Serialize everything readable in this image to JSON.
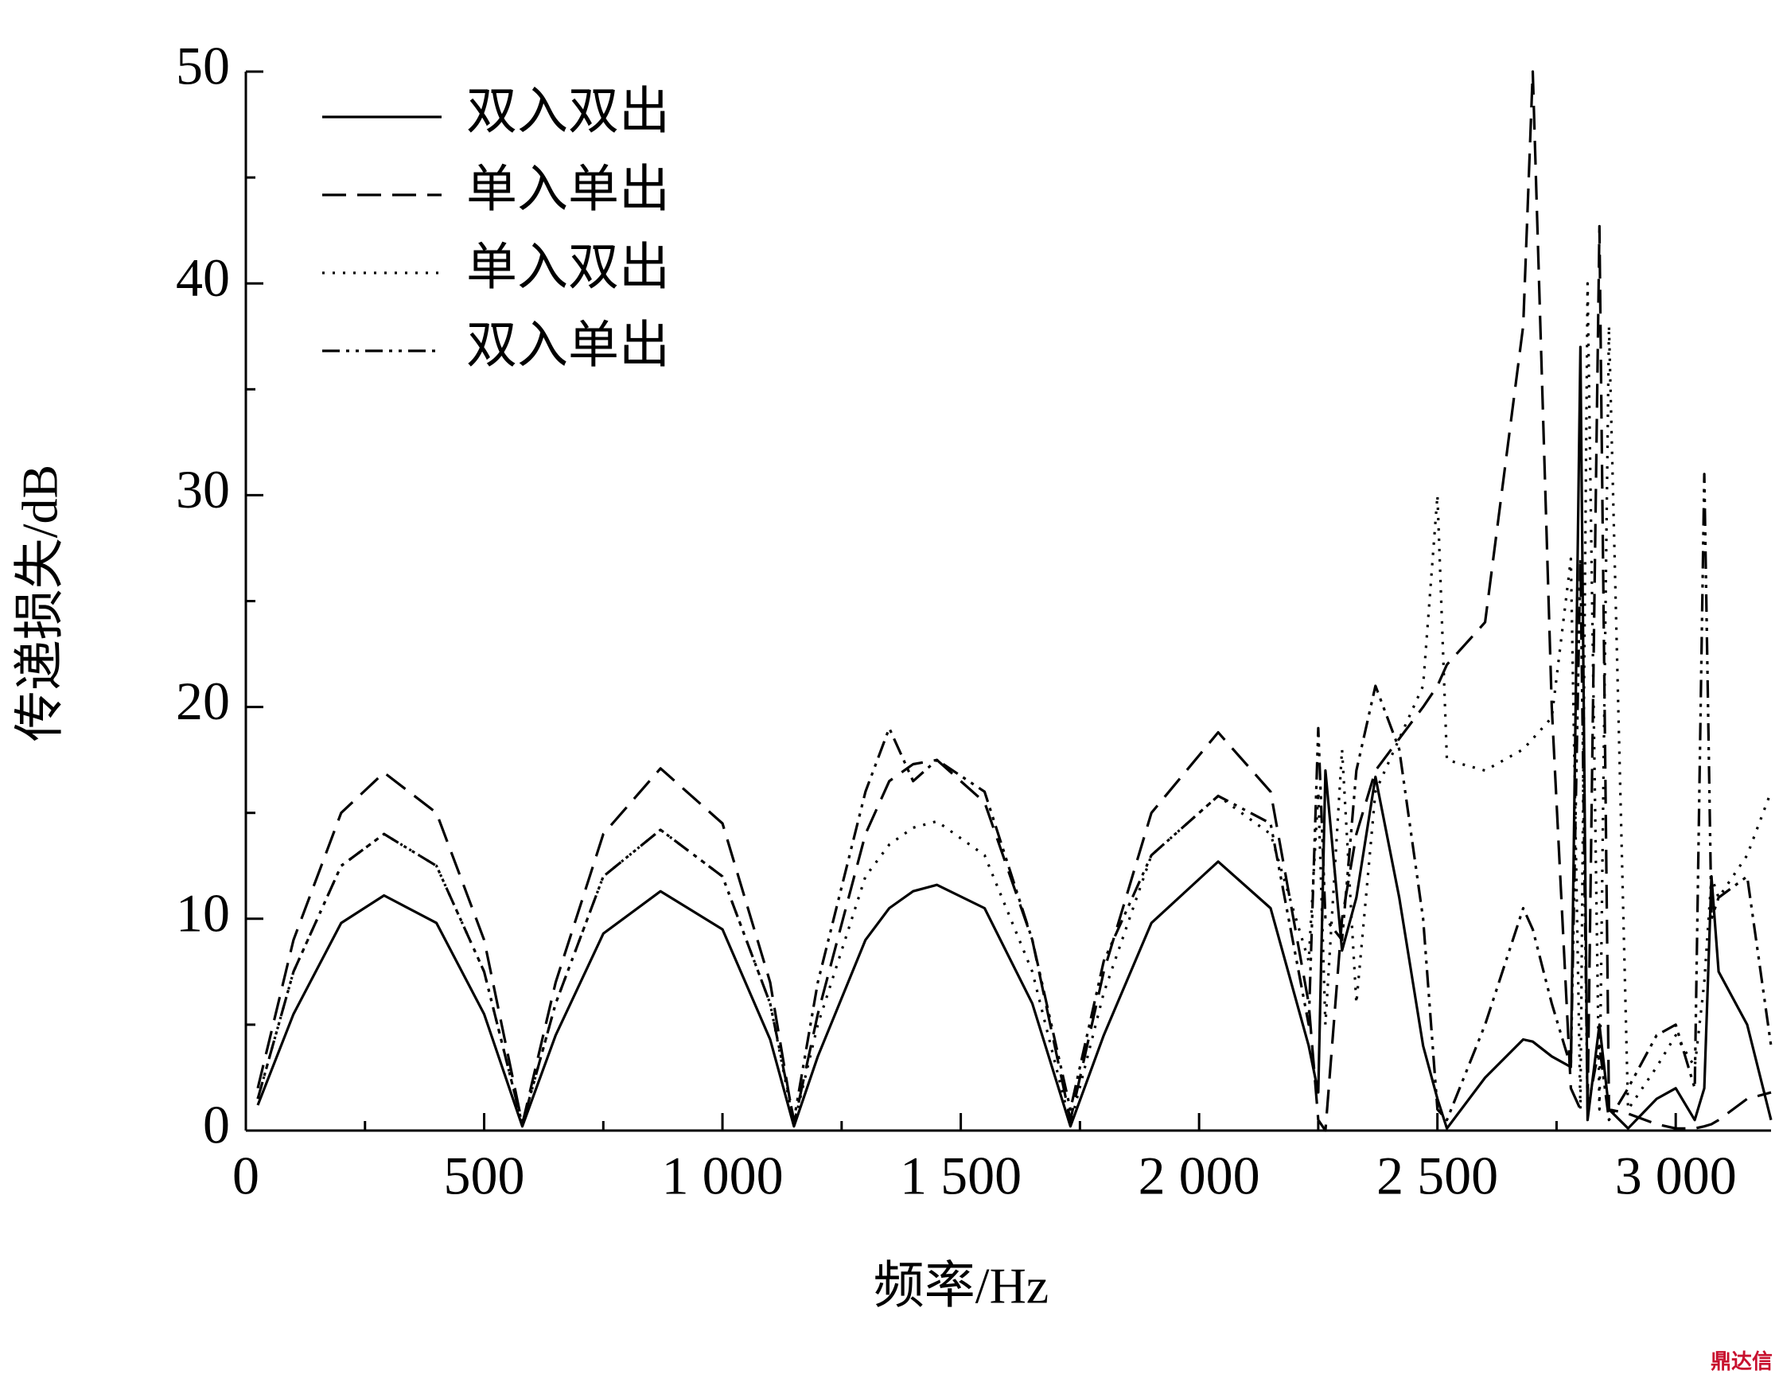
{
  "chart_data": {
    "type": "line",
    "xlabel": "频率/Hz",
    "ylabel": "传递损失/dB",
    "x": [
      25,
      100,
      200,
      290,
      400,
      500,
      580,
      650,
      750,
      870,
      1000,
      1100,
      1150,
      1200,
      1300,
      1350,
      1400,
      1450,
      1550,
      1650,
      1730,
      1800,
      1900,
      2040,
      2150,
      2230,
      2250,
      2265,
      2300,
      2330,
      2370,
      2420,
      2470,
      2500,
      2520,
      2600,
      2680,
      2700,
      2740,
      2780,
      2800,
      2815,
      2840,
      2860,
      2900,
      2960,
      3000,
      3040,
      3060,
      3075,
      3090,
      3150,
      3200
    ],
    "series": [
      {
        "name": "双入双出",
        "color": "#000000",
        "dash": "none",
        "values": [
          1.2,
          5.5,
          9.8,
          11.1,
          9.8,
          5.5,
          0.2,
          4.5,
          9.3,
          11.3,
          9.5,
          4.3,
          0.2,
          3.5,
          9,
          10.5,
          11.3,
          11.6,
          10.5,
          6,
          0.2,
          4.5,
          9.8,
          12.7,
          10.5,
          4,
          1.8,
          17,
          8.5,
          11,
          16.7,
          11,
          4,
          1.5,
          0.1,
          2.5,
          4.3,
          4.2,
          3.5,
          3,
          37,
          0.5,
          5,
          1,
          0.1,
          1.5,
          2,
          0.5,
          2,
          12,
          7.5,
          5,
          0.5
        ]
      },
      {
        "name": "单入单出",
        "color": "#000000",
        "dash": "30 14",
        "values": [
          2,
          9,
          15,
          16.9,
          15,
          9,
          0.3,
          7,
          14,
          17.1,
          14.5,
          7,
          0.3,
          5.5,
          14,
          16.5,
          17.3,
          17.5,
          15.5,
          9,
          0.5,
          7.5,
          15,
          18.8,
          16,
          6,
          0.5,
          0,
          10,
          14,
          17,
          18.5,
          20,
          21,
          22,
          24,
          38,
          50,
          20,
          2,
          1,
          1,
          42.7,
          1,
          0.8,
          0.3,
          0.1,
          0.1,
          0.2,
          0.3,
          0.5,
          1.5,
          1.8
        ]
      },
      {
        "name": "单入双出",
        "color": "#000000",
        "dash": "3 10",
        "values": [
          1.5,
          7.5,
          12.5,
          14,
          12.5,
          7.5,
          0.3,
          6,
          12,
          14.2,
          12,
          6,
          0.3,
          5,
          12,
          13.5,
          14.3,
          14.6,
          13,
          7.5,
          0.3,
          6.5,
          13,
          15.8,
          14,
          8,
          16,
          5,
          18,
          6,
          16,
          18.5,
          21,
          30,
          17.5,
          17,
          18,
          18.5,
          19.5,
          27,
          1,
          40,
          1,
          38,
          1,
          3,
          4.5,
          3,
          7,
          12,
          11,
          13,
          16
        ]
      },
      {
        "name": "双入单出",
        "color": "#000000",
        "dash": "22 8 4 8 4 8",
        "values": [
          1.5,
          7.5,
          12.5,
          14,
          12.5,
          7.5,
          0.3,
          6,
          12,
          14.2,
          12,
          6,
          0.5,
          7,
          16,
          19,
          16.5,
          17.5,
          16,
          9,
          1,
          8,
          13,
          15.8,
          14.5,
          5,
          19,
          10,
          9,
          17,
          21,
          18,
          10,
          1,
          0.5,
          5,
          10.5,
          9.5,
          6,
          3,
          27,
          1,
          4,
          0.5,
          2,
          4.5,
          5,
          2,
          31,
          10,
          11,
          12,
          4
        ]
      }
    ],
    "xlim": [
      0,
      3200
    ],
    "xticks": [
      0,
      500,
      {
        "value": 1000,
        "label": "1 000"
      },
      {
        "value": 1500,
        "label": "1 500"
      },
      {
        "value": 2000,
        "label": "2 000"
      },
      {
        "value": 2500,
        "label": "2 500"
      },
      {
        "value": 3000,
        "label": "3 000"
      }
    ],
    "xminorticks": [
      250,
      750,
      1250,
      1750,
      2250,
      2750
    ],
    "ylim": [
      0,
      50
    ],
    "yticks": [
      0,
      10,
      20,
      30,
      40,
      50
    ],
    "yminorticks": [
      5,
      15,
      25,
      35,
      45
    ],
    "legend": "upper left",
    "watermark": "鼎达信"
  }
}
